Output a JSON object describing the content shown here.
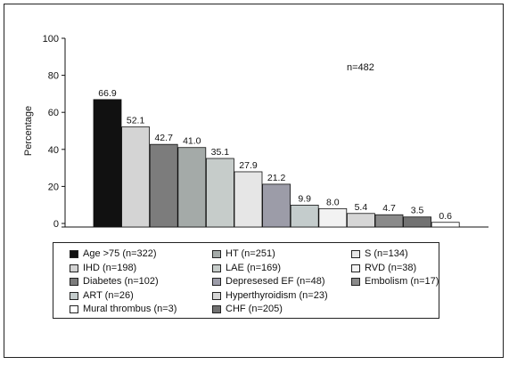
{
  "chart_data": {
    "type": "bar",
    "ylabel": "Percentage",
    "ylim": [
      0,
      100
    ],
    "yticks": [
      "0",
      "20",
      "40",
      "60",
      "80",
      "100"
    ],
    "annotation": "n=482",
    "series": [
      {
        "name": "Age >75 (n=322)",
        "value": 66.9,
        "label": "66.9",
        "color": "#111111"
      },
      {
        "name": "IHD (n=198)",
        "value": 52.1,
        "label": "52.1",
        "color": "#d4d4d4"
      },
      {
        "name": "Diabetes (n=102)",
        "value": 42.7,
        "label": "42.7",
        "color": "#7c7c7c"
      },
      {
        "name": "HT (n=251)",
        "value": 41.0,
        "label": "41.0",
        "color": "#a4aaa8"
      },
      {
        "name": "LAE (n=169)",
        "value": 35.1,
        "label": "35.1",
        "color": "#c6ccca"
      },
      {
        "name": "S (n=134)",
        "value": 27.9,
        "label": "27.9",
        "color": "#e6e6e6"
      },
      {
        "name": "Depresesed EF (n=48)",
        "value": 21.2,
        "label": "21.2",
        "color": "#9c9ca8"
      },
      {
        "name": "ART (n=26)",
        "value": 9.9,
        "label": "9.9",
        "color": "#c4cccc"
      },
      {
        "name": "RVD (n=38)",
        "value": 8.0,
        "label": "8.0",
        "color": "#f2f2f2"
      },
      {
        "name": "Hyperthyroidism (n=23)",
        "value": 5.4,
        "label": "5.4",
        "color": "#d6d6d6"
      },
      {
        "name": "Embolism (n=17)",
        "value": 4.7,
        "label": "4.7",
        "color": "#8a8a8a"
      },
      {
        "name": "CHF (n=205)",
        "value": 3.5,
        "label": "3.5",
        "color": "#727272"
      },
      {
        "name": "Mural thrombus (n=3)",
        "value": 0.6,
        "label": "0.6",
        "color": "#ffffff"
      }
    ],
    "legend": {
      "placement": "bottom",
      "rows": [
        [
          "Age >75 (n=322)",
          "HT (n=251)",
          "S (n=134)"
        ],
        [
          "IHD (n=198)",
          "LAE (n=169)",
          "RVD (n=38)"
        ],
        [
          "Diabetes (n=102)",
          "Depresesed EF (n=48)",
          "Embolism (n=17)"
        ],
        [
          "ART (n=26)",
          "Hyperthyroidism (n=23)"
        ],
        [
          "Mural thrombus (n=3)",
          "CHF (n=205)"
        ]
      ]
    }
  }
}
